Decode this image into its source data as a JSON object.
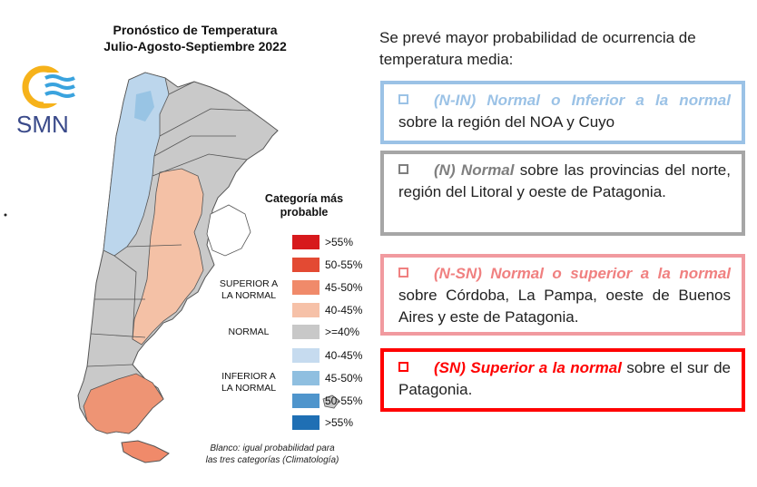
{
  "map": {
    "title_line1": "Pronóstico de Temperatura",
    "title_line2": "Julio-Agosto-Septiembre 2022",
    "logo_text": "SMN",
    "legend_heading_line1": "Categoría más",
    "legend_heading_line2": "probable",
    "legend_items": [
      {
        "label": ">55%",
        "color": "#d7191c"
      },
      {
        "label": "50-55%",
        "color": "#e34a33"
      },
      {
        "label": "45-50%",
        "color": "#f08a6a"
      },
      {
        "label": "40-45%",
        "color": "#f6c1a8"
      },
      {
        "label": ">=40%",
        "color": "#c8c8c8"
      },
      {
        "label": "40-45%",
        "color": "#c6dbef"
      },
      {
        "label": "45-50%",
        "color": "#8fbfe0"
      },
      {
        "label": "50-55%",
        "color": "#4f95cc"
      },
      {
        "label": ">55%",
        "color": "#1f6fb4"
      }
    ],
    "group_superior_line1": "SUPERIOR A",
    "group_superior_line2": "LA NORMAL",
    "group_normal": "NORMAL",
    "group_inferior_line1": "INFERIOR A",
    "group_inferior_line2": "LA NORMAL",
    "note_line1": "Blanco: igual probabilidad para",
    "note_line2": "las tres categorías (Climatología)"
  },
  "panel": {
    "intro": "Se prevé mayor probabilidad de ocurrencia de temperatura media:",
    "boxes": [
      {
        "highlight": "(N-IN) Normal o Inferior a la normal",
        "text": " sobre la región del NOA y Cuyo",
        "color": "#9bc2e6"
      },
      {
        "highlight": "(N) Normal",
        "text": " sobre las provincias del norte, región del Litoral y oeste de Patagonia.",
        "color": "#7f7f7f"
      },
      {
        "highlight": "(N-SN) Normal o superior a la normal",
        "text": " sobre Córdoba, La Pampa, oeste de Buenos Aires y este de Patagonia.",
        "color": "#f08080"
      },
      {
        "highlight": "(SN) Superior a la normal",
        "text": " sobre el sur de Patagonia.",
        "color": "#ff0000"
      }
    ]
  }
}
